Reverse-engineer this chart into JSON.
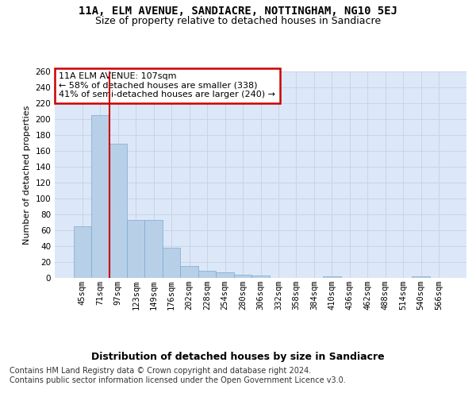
{
  "title1": "11A, ELM AVENUE, SANDIACRE, NOTTINGHAM, NG10 5EJ",
  "title2": "Size of property relative to detached houses in Sandiacre",
  "xlabel": "Distribution of detached houses by size in Sandiacre",
  "ylabel": "Number of detached properties",
  "categories": [
    "45sqm",
    "71sqm",
    "97sqm",
    "123sqm",
    "149sqm",
    "176sqm",
    "202sqm",
    "228sqm",
    "254sqm",
    "280sqm",
    "306sqm",
    "332sqm",
    "358sqm",
    "384sqm",
    "410sqm",
    "436sqm",
    "462sqm",
    "488sqm",
    "514sqm",
    "540sqm",
    "566sqm"
  ],
  "values": [
    65,
    205,
    169,
    73,
    73,
    38,
    15,
    9,
    7,
    4,
    3,
    0,
    0,
    0,
    2,
    0,
    0,
    0,
    0,
    2,
    0
  ],
  "bar_color": "#b8cfe8",
  "bar_edgecolor": "#7aaad0",
  "red_line_color": "#cc0000",
  "red_line_x": 1.5,
  "annotation_text": "11A ELM AVENUE: 107sqm\n← 58% of detached houses are smaller (338)\n41% of semi-detached houses are larger (240) →",
  "annotation_box_edgecolor": "#cc0000",
  "footer_text": "Contains HM Land Registry data © Crown copyright and database right 2024.\nContains public sector information licensed under the Open Government Licence v3.0.",
  "ylim": [
    0,
    260
  ],
  "yticks": [
    0,
    20,
    40,
    60,
    80,
    100,
    120,
    140,
    160,
    180,
    200,
    220,
    240,
    260
  ],
  "grid_color": "#c8d4e8",
  "bg_color": "#dce8f8",
  "title1_fontsize": 10,
  "title2_fontsize": 9,
  "xlabel_fontsize": 9,
  "ylabel_fontsize": 8,
  "tick_fontsize": 7.5,
  "ann_fontsize": 8,
  "footer_fontsize": 7
}
